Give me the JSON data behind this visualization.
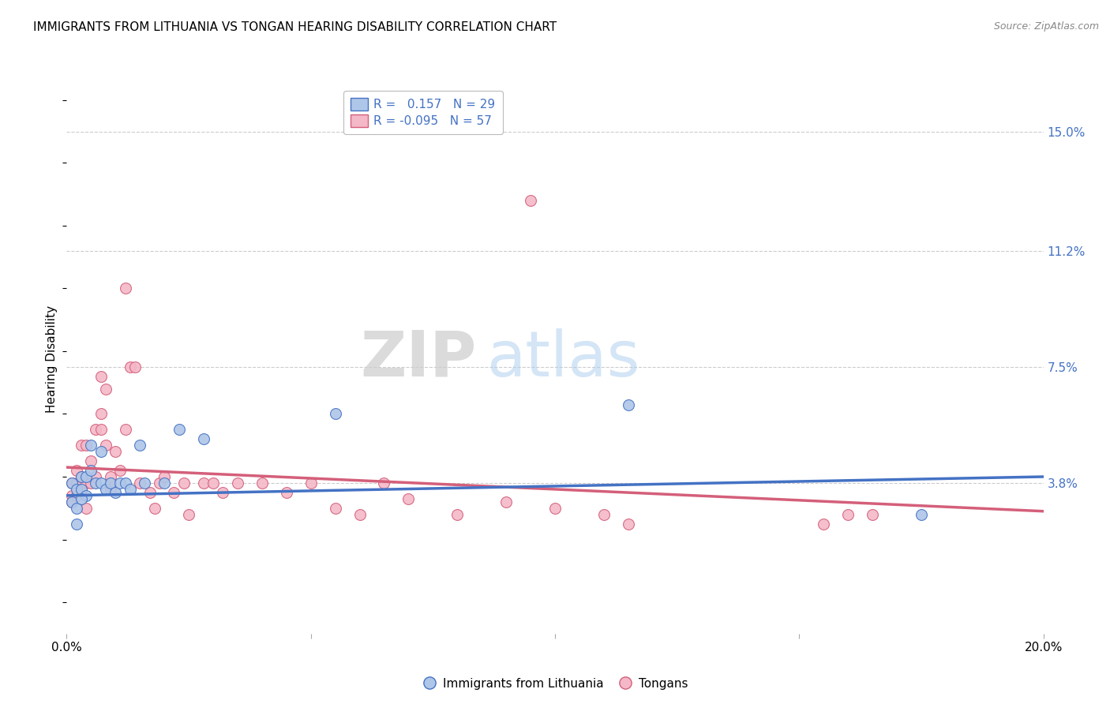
{
  "title": "IMMIGRANTS FROM LITHUANIA VS TONGAN HEARING DISABILITY CORRELATION CHART",
  "source": "Source: ZipAtlas.com",
  "ylabel": "Hearing Disability",
  "xlim": [
    0.0,
    0.2
  ],
  "ylim": [
    -0.01,
    0.165
  ],
  "ytick_positions": [
    0.038,
    0.075,
    0.112,
    0.15
  ],
  "ytick_labels": [
    "3.8%",
    "7.5%",
    "11.2%",
    "15.0%"
  ],
  "xtick_positions": [
    0.0,
    0.05,
    0.1,
    0.15,
    0.2
  ],
  "xtick_labels": [
    "0.0%",
    "",
    "",
    "",
    "20.0%"
  ],
  "watermark_zip": "ZIP",
  "watermark_atlas": "atlas",
  "series1_color": "#aec6e8",
  "series2_color": "#f4b8c8",
  "line1_color": "#4472c4",
  "line2_color": "#d45f7a",
  "grid_color": "#cccccc",
  "background_color": "#ffffff",
  "title_fontsize": 11,
  "axis_label_color": "#4472c4",
  "marker_size": 100,
  "series1_x": [
    0.001,
    0.001,
    0.002,
    0.002,
    0.003,
    0.003,
    0.004,
    0.004,
    0.005,
    0.005,
    0.006,
    0.007,
    0.007,
    0.008,
    0.009,
    0.01,
    0.011,
    0.012,
    0.013,
    0.015,
    0.016,
    0.02,
    0.023,
    0.028,
    0.055,
    0.115,
    0.175,
    0.002,
    0.003
  ],
  "series1_y": [
    0.038,
    0.032,
    0.036,
    0.03,
    0.04,
    0.036,
    0.04,
    0.034,
    0.05,
    0.042,
    0.038,
    0.048,
    0.038,
    0.036,
    0.038,
    0.035,
    0.038,
    0.038,
    0.036,
    0.05,
    0.038,
    0.038,
    0.055,
    0.052,
    0.06,
    0.063,
    0.028,
    0.025,
    0.033
  ],
  "series2_x": [
    0.001,
    0.001,
    0.001,
    0.002,
    0.002,
    0.002,
    0.003,
    0.003,
    0.003,
    0.004,
    0.004,
    0.004,
    0.005,
    0.005,
    0.006,
    0.006,
    0.007,
    0.007,
    0.007,
    0.008,
    0.008,
    0.009,
    0.009,
    0.01,
    0.011,
    0.012,
    0.012,
    0.013,
    0.014,
    0.015,
    0.017,
    0.018,
    0.019,
    0.02,
    0.022,
    0.024,
    0.025,
    0.028,
    0.03,
    0.032,
    0.035,
    0.04,
    0.045,
    0.05,
    0.055,
    0.06,
    0.065,
    0.07,
    0.08,
    0.09,
    0.095,
    0.1,
    0.11,
    0.115,
    0.155,
    0.16,
    0.165
  ],
  "series2_y": [
    0.038,
    0.034,
    0.032,
    0.042,
    0.038,
    0.034,
    0.05,
    0.04,
    0.036,
    0.05,
    0.038,
    0.03,
    0.045,
    0.038,
    0.055,
    0.04,
    0.06,
    0.072,
    0.055,
    0.068,
    0.05,
    0.04,
    0.036,
    0.048,
    0.042,
    0.1,
    0.055,
    0.075,
    0.075,
    0.038,
    0.035,
    0.03,
    0.038,
    0.04,
    0.035,
    0.038,
    0.028,
    0.038,
    0.038,
    0.035,
    0.038,
    0.038,
    0.035,
    0.038,
    0.03,
    0.028,
    0.038,
    0.033,
    0.028,
    0.032,
    0.128,
    0.03,
    0.028,
    0.025,
    0.025,
    0.028,
    0.028
  ],
  "trendline1_x0": 0.0,
  "trendline1_y0": 0.034,
  "trendline1_x1": 0.2,
  "trendline1_y1": 0.04,
  "trendline2_x0": 0.0,
  "trendline2_y0": 0.043,
  "trendline2_x1": 0.2,
  "trendline2_y1": 0.029
}
